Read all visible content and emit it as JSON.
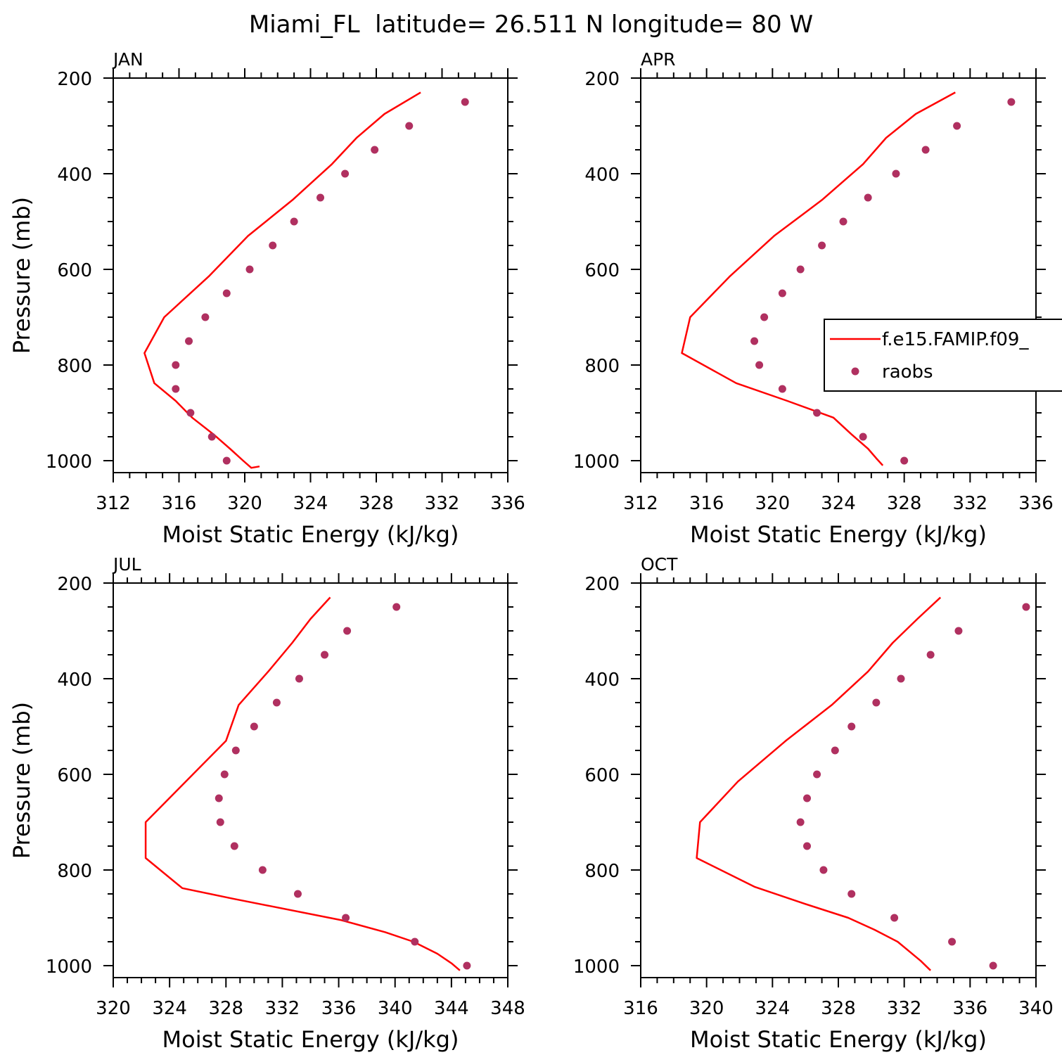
{
  "figure_title": "Miami_FL  latitude= 26.511 N longitude= 80 W",
  "legend": {
    "entries": [
      {
        "label": "f.e15.FAMIP.f09_",
        "style": "line",
        "color": "#ff0000"
      },
      {
        "label": "raobs",
        "style": "marker",
        "color": "#b03060"
      }
    ]
  },
  "colors": {
    "model_line": "#ff0000",
    "obs_marker": "#b03060",
    "axes": "#000000"
  },
  "chart_data": [
    {
      "type": "line",
      "panel": "JAN",
      "xlabel": "Moist Static Energy (kJ/kg)",
      "ylabel": "Pressure (mb)",
      "xlim": [
        312,
        336
      ],
      "ylim": [
        1025,
        200
      ],
      "x_ticks": [
        312,
        316,
        320,
        324,
        328,
        332,
        336
      ],
      "y_ticks": [
        200,
        400,
        600,
        800,
        1000
      ],
      "grid": false,
      "series": [
        {
          "name": "f.e15.FAMIP.f09_",
          "kind": "line",
          "x": [
            330.7,
            328.5,
            326.8,
            325.3,
            322.9,
            320.2,
            317.8,
            315.1,
            313.9,
            314.5,
            315.8,
            316.8,
            318.1,
            319.1,
            319.9,
            320.4,
            320.9
          ],
          "y": [
            230,
            275,
            325,
            380,
            455,
            530,
            615,
            700,
            775,
            838,
            875,
            910,
            945,
            975,
            1000,
            1015,
            1012
          ]
        },
        {
          "name": "raobs",
          "kind": "marker",
          "x": [
            333.4,
            330.0,
            327.9,
            326.1,
            324.6,
            323.0,
            321.7,
            320.3,
            318.9,
            317.6,
            316.6,
            315.8,
            315.8,
            316.7,
            318.0,
            318.9
          ],
          "y": [
            250,
            300,
            350,
            400,
            450,
            500,
            550,
            600,
            650,
            700,
            750,
            800,
            850,
            900,
            950,
            1000
          ]
        }
      ]
    },
    {
      "type": "line",
      "panel": "APR",
      "xlabel": "Moist Static Energy (kJ/kg)",
      "ylabel": "",
      "xlim": [
        312,
        336
      ],
      "ylim": [
        1025,
        200
      ],
      "x_ticks": [
        312,
        316,
        320,
        324,
        328,
        332,
        336
      ],
      "y_ticks": [
        200,
        400,
        600,
        800,
        1000
      ],
      "grid": false,
      "series": [
        {
          "name": "f.e15.FAMIP.f09_",
          "kind": "line",
          "x": [
            331.1,
            328.7,
            326.9,
            325.5,
            323.0,
            320.1,
            317.4,
            315.0,
            314.5,
            317.8,
            320.9,
            323.7,
            324.8,
            325.8,
            326.3,
            326.7
          ],
          "y": [
            230,
            275,
            325,
            380,
            455,
            530,
            615,
            700,
            775,
            838,
            875,
            910,
            945,
            975,
            995,
            1010
          ]
        },
        {
          "name": "raobs",
          "kind": "marker",
          "x": [
            334.5,
            331.2,
            329.3,
            327.5,
            325.8,
            324.3,
            323.0,
            321.7,
            320.6,
            319.5,
            318.9,
            319.2,
            320.6,
            322.7,
            325.5,
            328.0
          ],
          "y": [
            250,
            300,
            350,
            400,
            450,
            500,
            550,
            600,
            650,
            700,
            750,
            800,
            850,
            900,
            950,
            1000
          ]
        }
      ]
    },
    {
      "type": "line",
      "panel": "JUL",
      "xlabel": "Moist Static Energy (kJ/kg)",
      "ylabel": "Pressure (mb)",
      "xlim": [
        320,
        348
      ],
      "ylim": [
        1025,
        200
      ],
      "x_ticks": [
        320,
        324,
        328,
        332,
        336,
        340,
        344,
        348
      ],
      "y_ticks": [
        200,
        400,
        600,
        800,
        1000
      ],
      "grid": false,
      "series": [
        {
          "name": "f.e15.FAMIP.f09_",
          "kind": "line",
          "x": [
            335.4,
            334.0,
            332.7,
            331.0,
            328.9,
            328.0,
            322.3,
            322.3,
            324.9,
            328.5,
            336.2,
            339.3,
            341.3,
            343.0,
            344.0,
            344.6
          ],
          "y": [
            230,
            275,
            325,
            385,
            455,
            530,
            700,
            775,
            838,
            860,
            905,
            930,
            950,
            975,
            995,
            1010
          ]
        },
        {
          "name": "raobs",
          "kind": "marker",
          "x": [
            340.1,
            336.6,
            335.0,
            333.2,
            331.6,
            330.0,
            328.7,
            327.9,
            327.5,
            327.6,
            328.6,
            330.6,
            333.1,
            336.5,
            341.4,
            345.1
          ],
          "y": [
            250,
            300,
            350,
            400,
            450,
            500,
            550,
            600,
            650,
            700,
            750,
            800,
            850,
            900,
            950,
            1000
          ]
        }
      ]
    },
    {
      "type": "line",
      "panel": "OCT",
      "xlabel": "Moist Static Energy (kJ/kg)",
      "ylabel": "",
      "xlim": [
        316,
        340
      ],
      "ylim": [
        1025,
        200
      ],
      "x_ticks": [
        316,
        320,
        324,
        328,
        332,
        336,
        340
      ],
      "y_ticks": [
        200,
        400,
        600,
        800,
        1000
      ],
      "grid": false,
      "series": [
        {
          "name": "f.e15.FAMIP.f09_",
          "kind": "line",
          "x": [
            334.2,
            332.8,
            331.3,
            329.8,
            327.6,
            324.8,
            321.9,
            319.6,
            319.4,
            322.9,
            325.9,
            328.6,
            330.2,
            331.6,
            332.3,
            333.0,
            333.6
          ],
          "y": [
            230,
            275,
            325,
            385,
            455,
            530,
            615,
            700,
            775,
            835,
            870,
            900,
            925,
            950,
            970,
            990,
            1010
          ]
        },
        {
          "name": "raobs",
          "kind": "marker",
          "x": [
            339.4,
            335.3,
            333.6,
            331.8,
            330.3,
            328.8,
            327.8,
            326.7,
            326.1,
            325.7,
            326.1,
            327.1,
            328.8,
            331.4,
            334.9,
            337.4
          ],
          "y": [
            250,
            300,
            350,
            400,
            450,
            500,
            550,
            600,
            650,
            700,
            750,
            800,
            850,
            900,
            950,
            1000
          ]
        }
      ]
    }
  ]
}
